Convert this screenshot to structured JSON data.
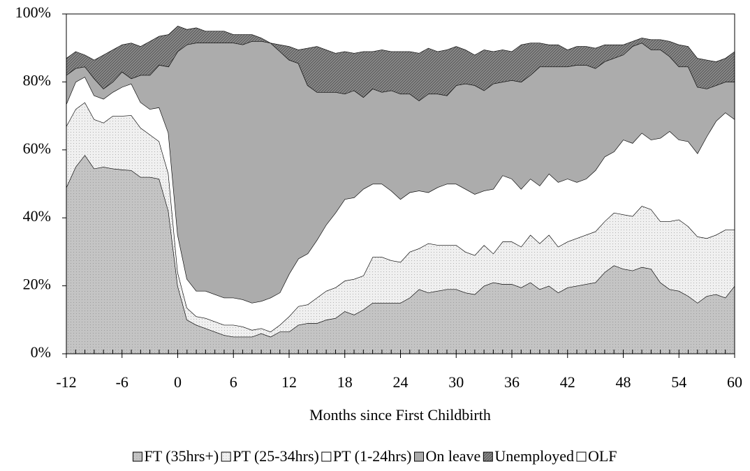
{
  "chart_data": {
    "type": "stacked_area",
    "xlabel": "Months since First Childbirth",
    "x": [
      -12,
      -11,
      -10,
      -9,
      -8,
      -7,
      -6,
      -5,
      -4,
      -3,
      -2,
      -1,
      0,
      1,
      2,
      3,
      4,
      5,
      6,
      7,
      8,
      9,
      10,
      11,
      12,
      13,
      14,
      15,
      16,
      17,
      18,
      19,
      20,
      21,
      22,
      23,
      24,
      25,
      26,
      27,
      28,
      29,
      30,
      31,
      32,
      33,
      34,
      35,
      36,
      37,
      38,
      39,
      40,
      41,
      42,
      43,
      44,
      45,
      46,
      47,
      48,
      49,
      50,
      51,
      52,
      53,
      54,
      55,
      56,
      57,
      58,
      59,
      60
    ],
    "xlim": [
      -12,
      60
    ],
    "xticks": [
      -12,
      -6,
      0,
      6,
      12,
      18,
      24,
      30,
      36,
      42,
      48,
      54,
      60
    ],
    "ylim": [
      0,
      100
    ],
    "yticks": [
      {
        "value": 0,
        "label": "0%"
      },
      {
        "value": 20,
        "label": "20%"
      },
      {
        "value": 40,
        "label": "40%"
      },
      {
        "value": 60,
        "label": "60%"
      },
      {
        "value": 80,
        "label": "80%"
      },
      {
        "value": 100,
        "label": "100%"
      }
    ],
    "legend_position": "bottom",
    "series": [
      {
        "name": "FT (35hrs+)",
        "color": "#c4c4c4",
        "pattern": "dots",
        "values": [
          49,
          55,
          58.5,
          54.5,
          55,
          54.5,
          54.2,
          54,
          52,
          52,
          51.5,
          42,
          20,
          10,
          8.5,
          7.5,
          6.5,
          5.5,
          5,
          5,
          5,
          6,
          5,
          6.5,
          6.5,
          8.5,
          9,
          9,
          10,
          10.5,
          12.5,
          11.5,
          13,
          15,
          15,
          15,
          15,
          16.5,
          19,
          18,
          18.5,
          19,
          19,
          18,
          17.5,
          20,
          21,
          20.5,
          20.5,
          19.5,
          21,
          19,
          20,
          18,
          19.5,
          20,
          20.5,
          21,
          24,
          26,
          25,
          24.5,
          25.5,
          25,
          21,
          19,
          18.5,
          17,
          15,
          17,
          17.5,
          16.5,
          20
        ]
      },
      {
        "name": "PT (25-34hrs)",
        "color": "#f0f0f0",
        "pattern": "dots",
        "values": [
          18,
          17,
          15.5,
          14.5,
          13,
          15.5,
          15.8,
          16.2,
          14.5,
          12.5,
          11,
          11,
          4,
          3.5,
          2.5,
          3,
          3,
          3,
          3.5,
          3,
          2,
          1.5,
          1.5,
          2,
          4.5,
          5.5,
          5.5,
          7.5,
          8.5,
          9,
          9,
          10.5,
          10,
          13.5,
          13.5,
          12.5,
          12,
          13.5,
          12,
          14.5,
          13.5,
          13,
          13,
          12,
          11.5,
          12,
          8.5,
          12.5,
          12.5,
          12,
          14,
          13.5,
          15,
          13.5,
          13.5,
          14,
          14.5,
          15,
          15,
          15.5,
          16,
          16,
          18,
          17.5,
          18,
          20,
          21,
          20.5,
          19.5,
          17,
          17.5,
          20,
          16.5
        ]
      },
      {
        "name": "PT (1-24hrs)",
        "color": "#ffffff",
        "pattern": "none",
        "values": [
          6.5,
          8,
          7.5,
          7,
          7,
          7,
          8.5,
          9.3,
          7.5,
          7.5,
          10,
          12,
          11,
          8.5,
          7.5,
          8,
          8,
          8,
          8,
          8,
          8,
          8,
          10,
          9.5,
          12.5,
          14,
          15,
          17,
          19.5,
          22,
          24,
          24,
          25.5,
          21.5,
          21.5,
          20.5,
          18.5,
          17.5,
          17,
          15,
          17,
          18,
          18,
          18.5,
          18,
          16,
          19,
          19.5,
          18.5,
          17,
          16.5,
          17,
          18,
          19,
          18.5,
          16.5,
          16.5,
          18,
          19,
          18,
          22,
          21.5,
          21.5,
          20.5,
          24.5,
          26.5,
          23.5,
          25,
          24.5,
          30,
          33.5,
          34.5,
          32.5
        ]
      },
      {
        "name": "On leave",
        "color": "#acacac",
        "pattern": "none",
        "values": [
          8.5,
          4,
          3,
          5,
          3,
          3,
          4.5,
          1.5,
          8,
          10,
          12.5,
          19.5,
          54,
          69,
          73,
          73,
          74,
          75,
          75,
          75,
          77,
          76.5,
          75,
          71,
          63,
          57.5,
          49.5,
          43.5,
          39,
          35.5,
          31,
          31.5,
          27,
          28,
          27,
          29.5,
          31,
          29,
          26.5,
          29,
          27.5,
          26,
          29,
          31,
          32,
          29.5,
          31,
          27.5,
          29,
          31.5,
          30.5,
          35,
          31.5,
          34,
          33,
          34.5,
          33.5,
          30,
          28,
          27.5,
          25,
          28.5,
          26.5,
          26.5,
          26,
          22,
          21.5,
          22,
          19.5,
          14,
          10.5,
          9,
          11
        ]
      },
      {
        "name": "Unemployed",
        "color": "#8c8c8c",
        "pattern": "hatch",
        "values": [
          5,
          5,
          3.5,
          5.5,
          10,
          9.5,
          8,
          10.5,
          8.5,
          10,
          8.5,
          9.5,
          7.5,
          4.5,
          4.5,
          3.5,
          3.5,
          3.5,
          2.5,
          3,
          2,
          1,
          0,
          2,
          4,
          4,
          11,
          13.5,
          12.5,
          11.5,
          12.5,
          11,
          13.5,
          11,
          12.5,
          11.5,
          12.5,
          12.5,
          14,
          13.5,
          12.5,
          13.5,
          11.5,
          10,
          9,
          12,
          9.5,
          9.5,
          8.5,
          11,
          9.5,
          7,
          6.5,
          6.5,
          5,
          5.5,
          5.5,
          6,
          5,
          4,
          3,
          1.5,
          1.5,
          3,
          3,
          4.5,
          6.5,
          6,
          8.5,
          8.5,
          7,
          7,
          9
        ]
      },
      {
        "name": "OLF",
        "color": "#ffffff",
        "pattern": "none",
        "values": [
          13,
          11,
          12,
          13.5,
          12,
          10.5,
          9,
          8.5,
          9.5,
          8,
          6.5,
          6,
          3.5,
          4.5,
          4,
          5,
          5,
          5,
          6,
          6,
          6,
          7,
          8.5,
          9,
          9.5,
          10.5,
          10,
          9.5,
          10.5,
          11.5,
          11,
          11.5,
          11,
          11,
          10.5,
          11,
          11,
          11,
          11.5,
          10,
          11,
          10.5,
          9.5,
          10.5,
          12,
          10.5,
          11,
          10.5,
          11,
          9,
          8.5,
          8.5,
          9,
          9,
          10.5,
          9.5,
          9.5,
          10,
          9,
          9,
          9,
          8,
          7,
          7.5,
          7.5,
          8,
          9,
          9.5,
          13,
          13.5,
          14,
          13,
          11
        ]
      }
    ]
  }
}
